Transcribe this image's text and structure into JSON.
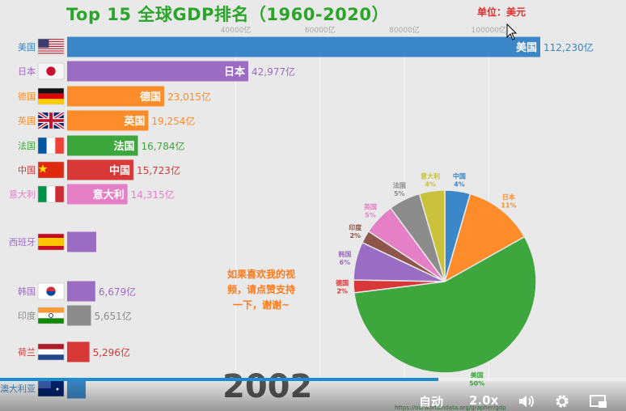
{
  "title": "Top 15 全球GDP排名（1960-2020）",
  "unit": "单位：美元",
  "year": "2002",
  "overlay_message": [
    "如果喜欢我的视",
    "频，请点赞支持",
    "一下，谢谢~"
  ],
  "footer_url": "https://ourworldindata.org/grapher/gdp",
  "controls": {
    "quality": "自动",
    "speed": "2.0x",
    "progress": 0.7
  },
  "colors": {
    "title": "#2aa52a",
    "unit": "#e03030"
  },
  "chart_data": [
    {
      "type": "bar",
      "orientation": "horizontal",
      "axis_ticks": [
        "40000亿",
        "60000亿",
        "80000亿",
        "100000亿"
      ],
      "axis_tick_values": [
        40000,
        60000,
        80000,
        100000
      ],
      "xlim": [
        0,
        112230
      ],
      "bars": [
        {
          "country": "美国",
          "value": 112230,
          "label": "112,230亿",
          "color": "#3a86c6",
          "flag": "us"
        },
        {
          "country": "日本",
          "value": 42977,
          "label": "42,977亿",
          "color": "#9b6cc4",
          "flag": "jp"
        },
        {
          "country": "德国",
          "value": 23015,
          "label": "23,015亿",
          "color": "#ff8c2a",
          "flag": "de"
        },
        {
          "country": "英国",
          "value": 19254,
          "label": "19,254亿",
          "color": "#ff8c2a",
          "flag": "gb"
        },
        {
          "country": "法国",
          "value": 16784,
          "label": "16,784亿",
          "color": "#3da63d",
          "flag": "fr"
        },
        {
          "country": "中国",
          "value": 15723,
          "label": "15,723亿",
          "color": "#d93838",
          "flag": "cn"
        },
        {
          "country": "意大利",
          "value": 14315,
          "label": "14,315亿",
          "color": "#e680c6",
          "flag": "it"
        },
        {
          "country": "西班牙",
          "value": 6900,
          "label": "",
          "color": "#9b6cc4",
          "flag": "es"
        },
        {
          "country": "韩国",
          "value": 6679,
          "label": "6,679亿",
          "color": "#9b6cc4",
          "flag": "kr"
        },
        {
          "country": "印度",
          "value": 5651,
          "label": "5,651亿",
          "color": "#8c8c8c",
          "flag": "in"
        },
        {
          "country": "荷兰",
          "value": 5296,
          "label": "5,296亿",
          "color": "#d93838",
          "flag": "nl"
        },
        {
          "country": "澳大利亚",
          "value": 4400,
          "label": "",
          "color": "#3a86c6",
          "flag": "au"
        }
      ]
    },
    {
      "type": "pie",
      "slices": [
        {
          "name": "中国",
          "percent": 4,
          "label": "4%",
          "color": "#3a86c6"
        },
        {
          "name": "日本",
          "percent": 11,
          "label": "11%",
          "color": "#ff8c2a"
        },
        {
          "name": "美国",
          "percent": 50,
          "label": "50%",
          "color": "#3da63d"
        },
        {
          "name": "德国",
          "percent": 2,
          "label": "2%",
          "color": "#d93838"
        },
        {
          "name": "韩国",
          "percent": 6,
          "label": "6%",
          "color": "#9b6cc4"
        },
        {
          "name": "印度",
          "percent": 2,
          "label": "2%",
          "color": "#8c564b"
        },
        {
          "name": "英国",
          "percent": 5,
          "label": "5%",
          "color": "#e680c6"
        },
        {
          "name": "法国",
          "percent": 5,
          "label": "5%",
          "color": "#8c8c8c"
        },
        {
          "name": "意大利",
          "percent": 4,
          "label": "4%",
          "color": "#c9c23a"
        }
      ]
    }
  ]
}
